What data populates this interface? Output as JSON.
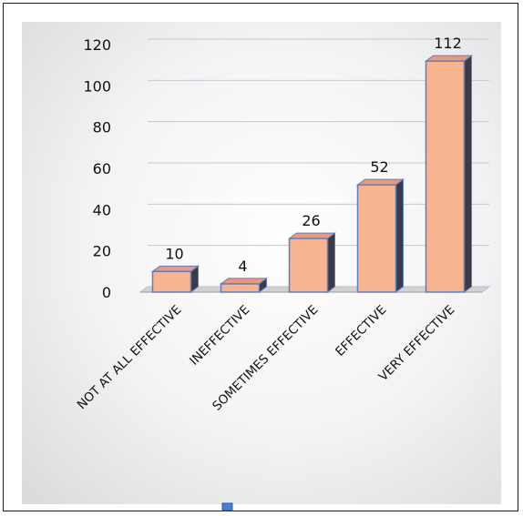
{
  "chart_data": {
    "type": "bar",
    "categories": [
      "NOT AT ALL EFFECTIVE",
      "INEFFECTIVE",
      "SOMETIMES  EFFECTIVE",
      "EFFECTIVE",
      "VERY EFFECTIVE"
    ],
    "values": [
      10,
      4,
      26,
      52,
      112
    ],
    "data_labels": [
      "10",
      "4",
      "26",
      "52",
      "112"
    ],
    "ylim": [
      0,
      120
    ],
    "yticks": [
      0,
      20,
      40,
      60,
      80,
      100,
      120
    ],
    "ytick_labels": [
      "0",
      "20",
      "40",
      "60",
      "80",
      "100",
      "120"
    ],
    "grid": true,
    "legend_position": "bottom",
    "style": "3d-column",
    "colors": {
      "bar_front": "#f8b48e",
      "bar_top": "#e89a7a",
      "bar_side": "#3a3a4a",
      "bar_outline": "#5b7fc4",
      "floor": "#d2d2d6",
      "legend_swatch": "#4a7fd0"
    }
  }
}
